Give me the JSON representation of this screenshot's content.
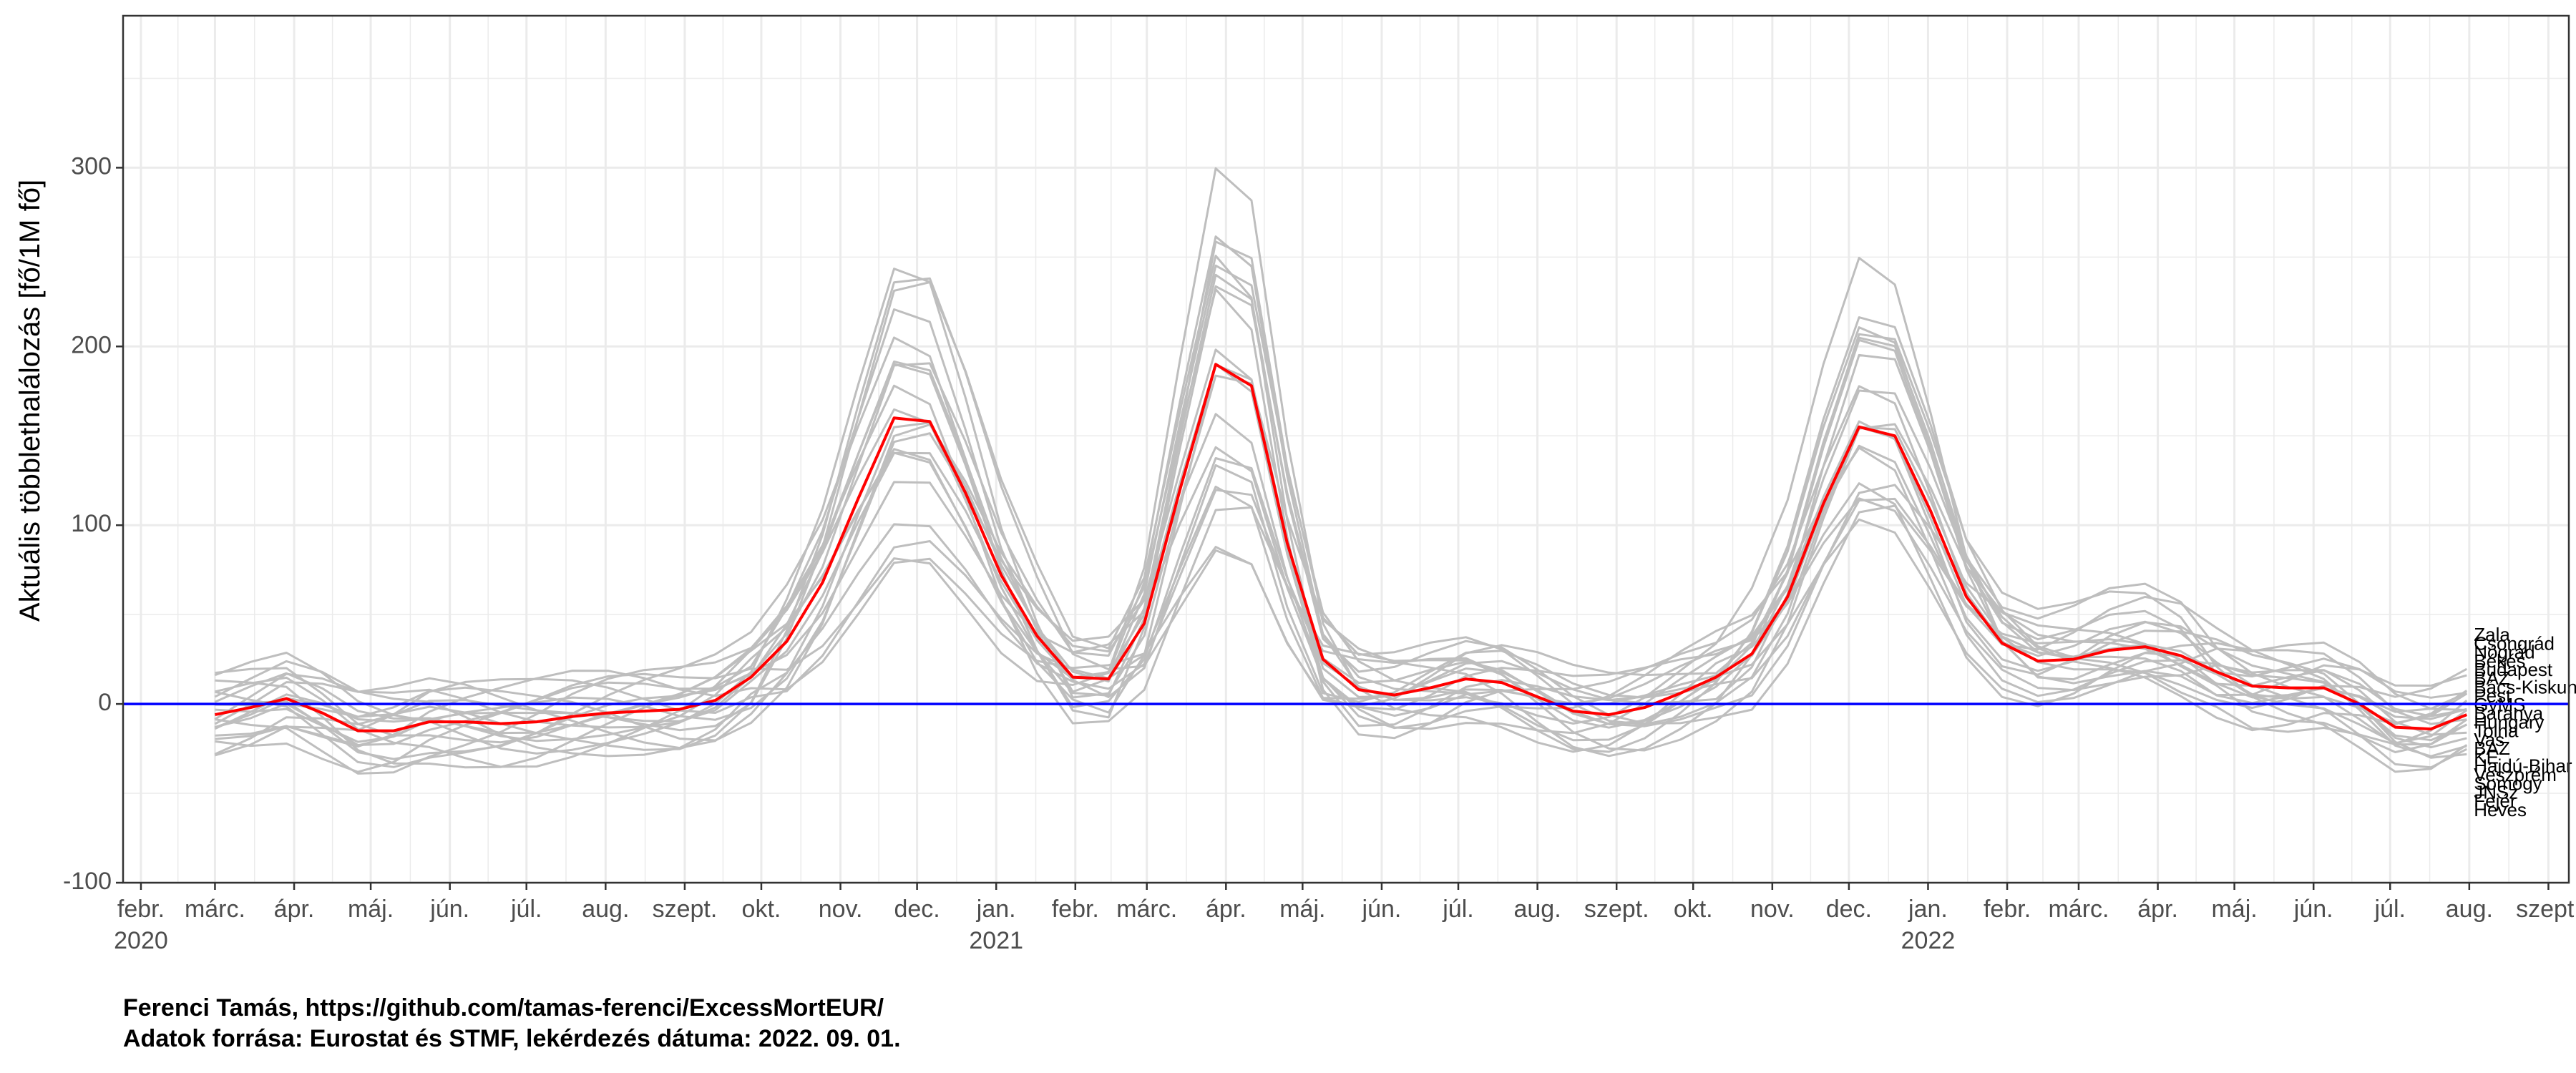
{
  "chart_data": {
    "type": "line",
    "title": "",
    "ylabel": "Aktuális többlethalálozás [fő/1M fő]",
    "xlabel": "",
    "ylim": [
      -100,
      385
    ],
    "xlim": [
      "2020-01-25",
      "2022-09-09"
    ],
    "y_ticks": [
      -100,
      0,
      100,
      200,
      300
    ],
    "grid": true,
    "x_ticks": [
      {
        "date": "2020-02-01",
        "label": "febr.",
        "year": "2020"
      },
      {
        "date": "2020-03-01",
        "label": "márc.",
        "year": ""
      },
      {
        "date": "2020-04-01",
        "label": "ápr.",
        "year": ""
      },
      {
        "date": "2020-05-01",
        "label": "máj.",
        "year": ""
      },
      {
        "date": "2020-06-01",
        "label": "jún.",
        "year": ""
      },
      {
        "date": "2020-07-01",
        "label": "júl.",
        "year": ""
      },
      {
        "date": "2020-08-01",
        "label": "aug.",
        "year": ""
      },
      {
        "date": "2020-09-01",
        "label": "szept.",
        "year": ""
      },
      {
        "date": "2020-10-01",
        "label": "okt.",
        "year": ""
      },
      {
        "date": "2020-11-01",
        "label": "nov.",
        "year": ""
      },
      {
        "date": "2020-12-01",
        "label": "dec.",
        "year": ""
      },
      {
        "date": "2021-01-01",
        "label": "jan.",
        "year": "2021"
      },
      {
        "date": "2021-02-01",
        "label": "febr.",
        "year": ""
      },
      {
        "date": "2021-03-01",
        "label": "márc.",
        "year": ""
      },
      {
        "date": "2021-04-01",
        "label": "ápr.",
        "year": ""
      },
      {
        "date": "2021-05-01",
        "label": "máj.",
        "year": ""
      },
      {
        "date": "2021-06-01",
        "label": "jún.",
        "year": ""
      },
      {
        "date": "2021-07-01",
        "label": "júl.",
        "year": ""
      },
      {
        "date": "2021-08-01",
        "label": "aug.",
        "year": ""
      },
      {
        "date": "2021-09-01",
        "label": "szept.",
        "year": ""
      },
      {
        "date": "2021-10-01",
        "label": "okt.",
        "year": ""
      },
      {
        "date": "2021-11-01",
        "label": "nov.",
        "year": ""
      },
      {
        "date": "2021-12-01",
        "label": "dec.",
        "year": ""
      },
      {
        "date": "2022-01-01",
        "label": "jan.",
        "year": "2022"
      },
      {
        "date": "2022-02-01",
        "label": "febr.",
        "year": ""
      },
      {
        "date": "2022-03-01",
        "label": "márc.",
        "year": ""
      },
      {
        "date": "2022-04-01",
        "label": "ápr.",
        "year": ""
      },
      {
        "date": "2022-05-01",
        "label": "máj.",
        "year": ""
      },
      {
        "date": "2022-06-01",
        "label": "jún.",
        "year": ""
      },
      {
        "date": "2022-07-01",
        "label": "júl.",
        "year": ""
      },
      {
        "date": "2022-08-01",
        "label": "aug.",
        "year": ""
      },
      {
        "date": "2022-09-01",
        "label": "szept.",
        "year": ""
      }
    ],
    "reference_line": {
      "y": 0,
      "color": "#0000ff"
    },
    "colors": {
      "counties": "#bebebe",
      "hungary": "#ff0000",
      "grid": "#ebebeb",
      "panel_border": "#333333"
    },
    "series": [
      {
        "name": "Hungary",
        "highlight": true,
        "x": [
          "2020-03-01",
          "2020-03-15",
          "2020-03-29",
          "2020-04-12",
          "2020-04-26",
          "2020-05-10",
          "2020-05-24",
          "2020-06-07",
          "2020-06-21",
          "2020-07-05",
          "2020-07-19",
          "2020-08-02",
          "2020-08-16",
          "2020-08-30",
          "2020-09-13",
          "2020-09-27",
          "2020-10-11",
          "2020-10-25",
          "2020-11-08",
          "2020-11-22",
          "2020-12-06",
          "2020-12-20",
          "2021-01-03",
          "2021-01-17",
          "2021-01-31",
          "2021-02-14",
          "2021-02-28",
          "2021-03-14",
          "2021-03-28",
          "2021-04-11",
          "2021-04-25",
          "2021-05-09",
          "2021-05-23",
          "2021-06-06",
          "2021-06-20",
          "2021-07-04",
          "2021-07-18",
          "2021-08-01",
          "2021-08-15",
          "2021-08-29",
          "2021-09-12",
          "2021-09-26",
          "2021-10-10",
          "2021-10-24",
          "2021-11-07",
          "2021-11-21",
          "2021-12-05",
          "2021-12-19",
          "2022-01-02",
          "2022-01-16",
          "2022-01-30",
          "2022-02-13",
          "2022-02-27",
          "2022-03-13",
          "2022-03-27",
          "2022-04-10",
          "2022-04-24",
          "2022-05-08",
          "2022-05-22",
          "2022-06-05",
          "2022-06-19",
          "2022-07-03",
          "2022-07-17",
          "2022-07-31"
        ],
        "values": [
          -6,
          -2,
          3,
          -5,
          -15,
          -15,
          -10,
          -10,
          -11,
          -10,
          -7,
          -5,
          -4,
          -3,
          2,
          15,
          35,
          68,
          115,
          160,
          158,
          118,
          72,
          38,
          15,
          14,
          45,
          120,
          190,
          178,
          90,
          25,
          8,
          5,
          9,
          14,
          12,
          4,
          -4,
          -6,
          -2,
          6,
          15,
          28,
          60,
          112,
          155,
          150,
          108,
          60,
          34,
          24,
          25,
          30,
          32,
          27,
          18,
          10,
          9,
          9,
          0,
          -13,
          -14,
          -6
        ]
      }
    ],
    "county_labels": [
      "Zala",
      "Csongrád",
      "Nógrád",
      "Békés",
      "Budapest",
      "BAZ",
      "Bács-Kiskun",
      "Pest",
      "GyMS",
      "Baranya",
      "Hungary",
      "Tolna",
      "Vas",
      "BAZ",
      "KE",
      "Hajdú-Bihar",
      "Veszprém",
      "Somogy",
      "JNSz",
      "Fejér",
      "Heves"
    ]
  },
  "caption": {
    "line1": "Ferenci Tamás, https://github.com/tamas-ferenci/ExcessMortEUR/",
    "line2": "Adatok forrása: Eurostat és STMF, lekérdezés dátuma: 2022. 09. 01."
  }
}
